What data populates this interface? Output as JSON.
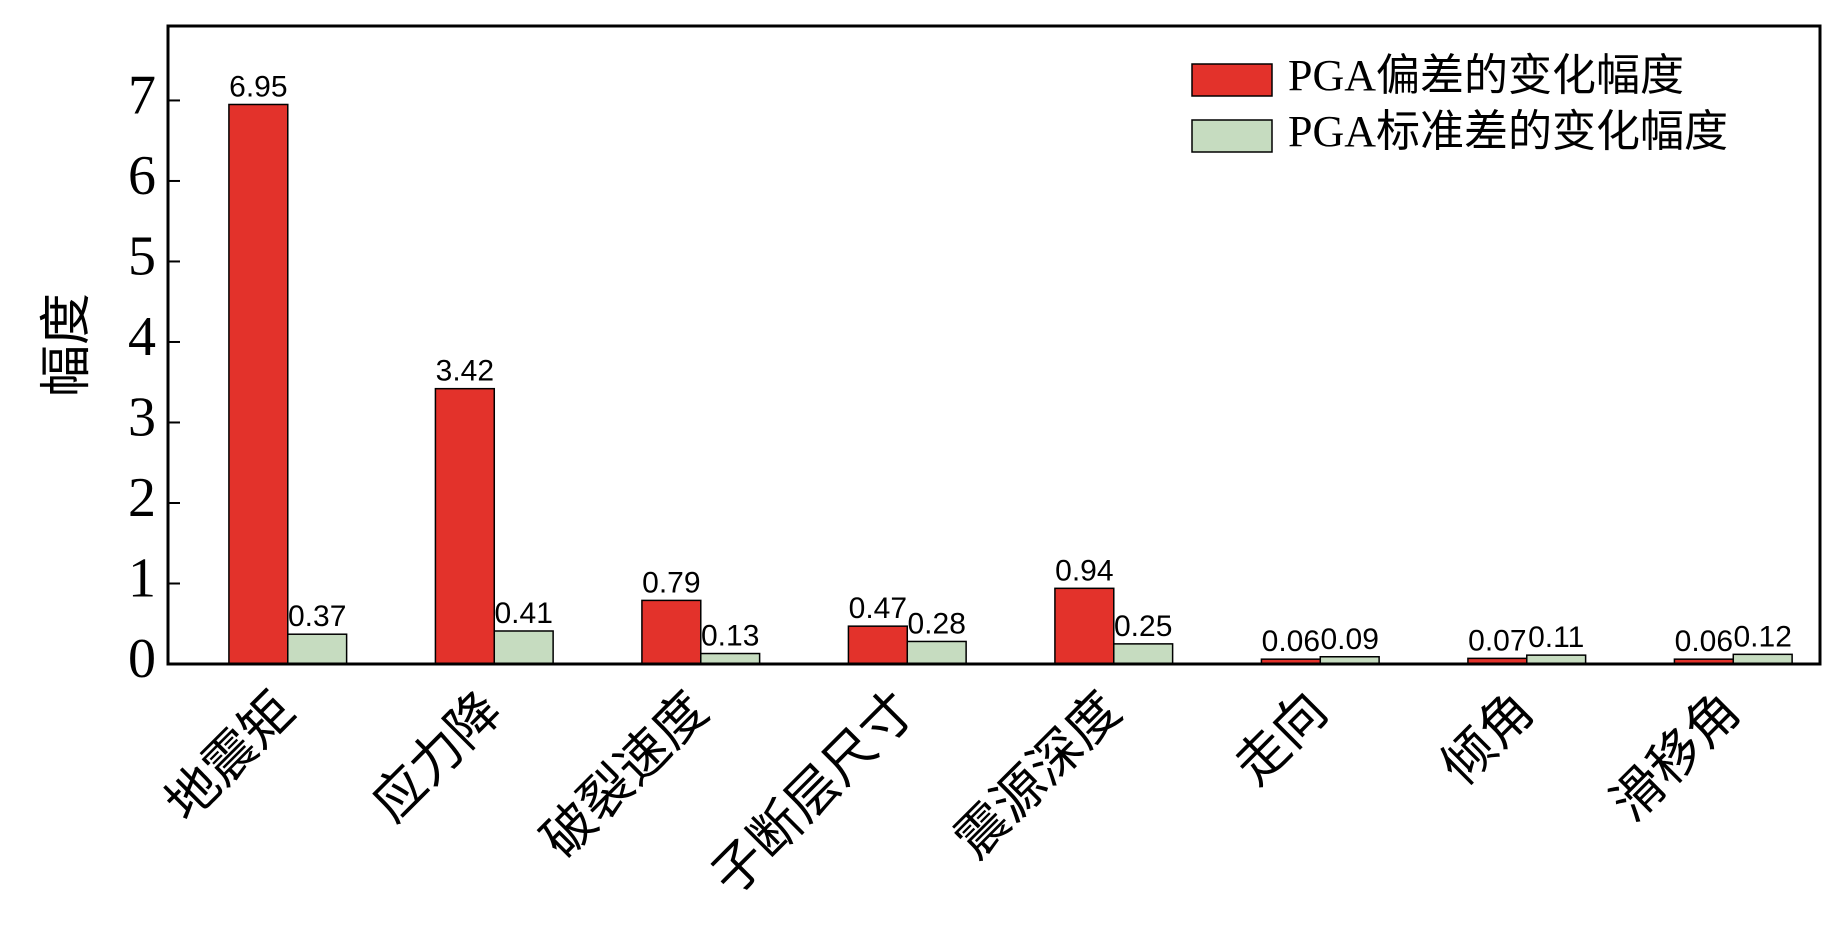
{
  "chart_data": {
    "type": "bar",
    "y_label": "幅度",
    "categories": [
      "地震矩",
      "应力降",
      "破裂速度",
      "子断层尺寸",
      "震源深度",
      "走向",
      "倾角",
      "滑移角"
    ],
    "series": [
      {
        "name": "PGA偏差的变化幅度",
        "color": "#e3322b",
        "values": [
          6.95,
          3.42,
          0.79,
          0.47,
          0.94,
          0.06,
          0.07,
          0.06
        ]
      },
      {
        "name": "PGA标准差的变化幅度",
        "color": "#c6dcc0",
        "values": [
          0.37,
          0.41,
          0.13,
          0.28,
          0.25,
          0.09,
          0.11,
          0.12
        ]
      }
    ],
    "ylim": [
      0,
      7.9
    ],
    "yticks": [
      0,
      1,
      2,
      3,
      4,
      5,
      6,
      7
    ],
    "grid": false,
    "legend": "upper right"
  }
}
